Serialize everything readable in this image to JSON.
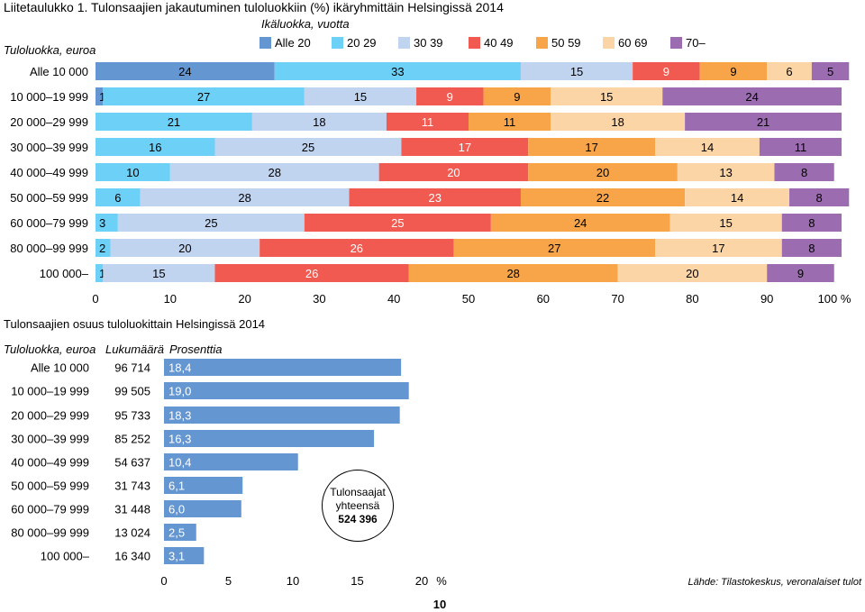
{
  "page": {
    "title": "Liitetaulukko 1. Tulonsaajien jakautuminen tuloluokkiin (%) ikäryhmittäin Helsingissä 2014",
    "subtitle": "Tulonsaajien osuus tuloluokittain Helsingissä 2014",
    "page_number": "10",
    "source": "Lähde: Tilastokeskus, veronalaiset tulot"
  },
  "summary": {
    "label_line1": "Tulonsaajat",
    "label_line2": "yhteensä",
    "total": "524 396"
  },
  "chart_data": [
    {
      "type": "stacked-bar-horizontal",
      "title": "Tulonsaajien jakautuminen tuloluokkiin (%) ikäryhmittäin Helsingissä 2014",
      "legend_title": "Ikäluokka, vuotta",
      "row_header": "Tuloluokka, euroa",
      "xlim": [
        0,
        100
      ],
      "x_ticks": [
        "0",
        "10",
        "20",
        "30",
        "40",
        "50",
        "60",
        "70",
        "80",
        "90",
        "100 %"
      ],
      "categories": [
        "Alle 10 000",
        "10 000–19 999",
        "20 000–29 999",
        "30 000–39 999",
        "40 000–49 999",
        "50 000–59 999",
        "60 000–79 999",
        "80 000–99 999",
        "100 000–"
      ],
      "series": [
        {
          "name": "Alle 20",
          "color": "#6496d2",
          "values": [
            24,
            1,
            0,
            0,
            0,
            0,
            0,
            0,
            0
          ]
        },
        {
          "name": "20 29",
          "color": "#6dd0f6",
          "values": [
            33,
            27,
            21,
            16,
            10,
            6,
            3,
            2,
            1
          ]
        },
        {
          "name": "30 39",
          "color": "#c0d4f0",
          "values": [
            15,
            15,
            18,
            25,
            28,
            28,
            25,
            20,
            15
          ]
        },
        {
          "name": "40 49",
          "color": "#f05a50",
          "values": [
            9,
            9,
            11,
            17,
            20,
            23,
            25,
            26,
            26
          ]
        },
        {
          "name": "50 59",
          "color": "#f8a549",
          "values": [
            9,
            9,
            11,
            17,
            20,
            22,
            24,
            27,
            28
          ]
        },
        {
          "name": "60 69",
          "color": "#fcd5a6",
          "values": [
            6,
            15,
            18,
            14,
            13,
            14,
            15,
            17,
            20
          ]
        },
        {
          "name": "70–",
          "color": "#9b6cb0",
          "values": [
            5,
            24,
            21,
            11,
            8,
            8,
            8,
            8,
            9
          ]
        }
      ]
    },
    {
      "type": "bar-horizontal",
      "title": "Tulonsaajien osuus tuloluokittain Helsingissä 2014",
      "col_headers": [
        "Tuloluokka, euroa",
        "Lukumäärä",
        "Prosenttia"
      ],
      "xlim": [
        0,
        20
      ],
      "x_ticks": [
        "0",
        "5",
        "10",
        "15",
        "20",
        "%"
      ],
      "color": "#6496d2",
      "rows": [
        {
          "label": "Alle 10 000",
          "count": "96 714",
          "value": 18.4,
          "value_label": "18,4"
        },
        {
          "label": "10 000–19 999",
          "count": "99 505",
          "value": 19.0,
          "value_label": "19,0"
        },
        {
          "label": "20 000–29 999",
          "count": "95 733",
          "value": 18.3,
          "value_label": "18,3"
        },
        {
          "label": "30 000–39 999",
          "count": "85 252",
          "value": 16.3,
          "value_label": "16,3"
        },
        {
          "label": "40 000–49 999",
          "count": "54 637",
          "value": 10.4,
          "value_label": "10,4"
        },
        {
          "label": "50 000–59 999",
          "count": "31 743",
          "value": 6.1,
          "value_label": "6,1"
        },
        {
          "label": "60 000–79 999",
          "count": "31 448",
          "value": 6.0,
          "value_label": "6,0"
        },
        {
          "label": "80 000–99 999",
          "count": "13 024",
          "value": 2.5,
          "value_label": "2,5"
        },
        {
          "label": "100 000–",
          "count": "16 340",
          "value": 3.1,
          "value_label": "3,1"
        }
      ]
    }
  ]
}
